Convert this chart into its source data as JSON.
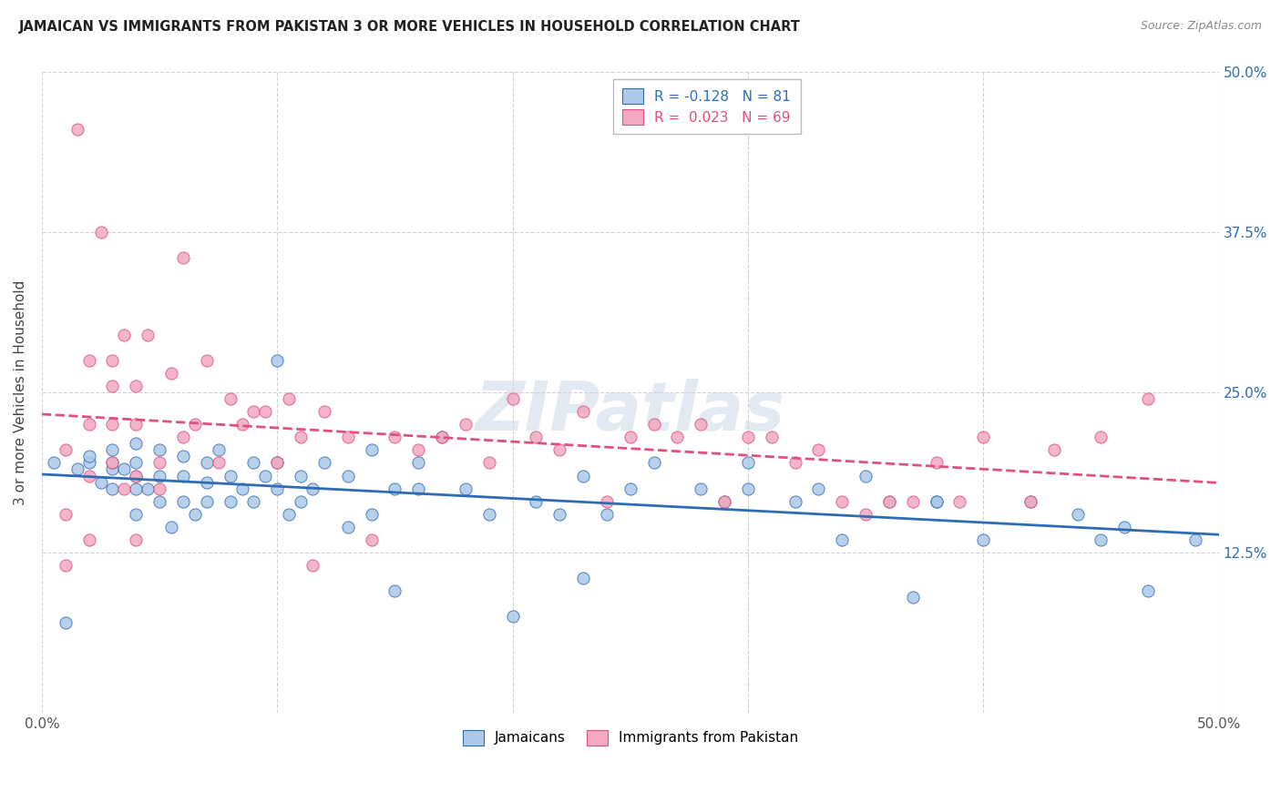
{
  "title": "JAMAICAN VS IMMIGRANTS FROM PAKISTAN 3 OR MORE VEHICLES IN HOUSEHOLD CORRELATION CHART",
  "source": "Source: ZipAtlas.com",
  "ylabel": "3 or more Vehicles in Household",
  "xlim": [
    0.0,
    0.5
  ],
  "ylim": [
    0.0,
    0.5
  ],
  "yticks": [
    0.125,
    0.25,
    0.375,
    0.5
  ],
  "ytick_labels": [
    "12.5%",
    "25.0%",
    "37.5%",
    "50.0%"
  ],
  "xticks": [
    0.0,
    0.1,
    0.2,
    0.3,
    0.4,
    0.5
  ],
  "xtick_labels": [
    "0.0%",
    "",
    "",
    "",
    "",
    "50.0%"
  ],
  "jamaicans_R": -0.128,
  "jamaicans_N": 81,
  "pakistan_R": 0.023,
  "pakistan_N": 69,
  "scatter_color_jamaican": "#adc8e8",
  "scatter_color_pakistan": "#f2a8be",
  "line_color_jamaican": "#2e6db4",
  "line_color_pakistan": "#e05080",
  "legend_label_jamaican": "Jamaicans",
  "legend_label_pakistan": "Immigrants from Pakistan",
  "watermark": "ZIPatlas",
  "jamaicans_x": [
    0.005,
    0.01,
    0.015,
    0.02,
    0.02,
    0.025,
    0.03,
    0.03,
    0.03,
    0.03,
    0.035,
    0.04,
    0.04,
    0.04,
    0.04,
    0.04,
    0.045,
    0.05,
    0.05,
    0.05,
    0.055,
    0.06,
    0.06,
    0.06,
    0.065,
    0.07,
    0.07,
    0.07,
    0.075,
    0.08,
    0.08,
    0.085,
    0.09,
    0.09,
    0.095,
    0.1,
    0.1,
    0.1,
    0.105,
    0.11,
    0.11,
    0.115,
    0.12,
    0.13,
    0.13,
    0.14,
    0.14,
    0.15,
    0.15,
    0.16,
    0.16,
    0.17,
    0.18,
    0.19,
    0.2,
    0.21,
    0.22,
    0.23,
    0.23,
    0.24,
    0.25,
    0.26,
    0.28,
    0.29,
    0.3,
    0.3,
    0.32,
    0.33,
    0.34,
    0.35,
    0.36,
    0.37,
    0.38,
    0.38,
    0.4,
    0.42,
    0.44,
    0.45,
    0.46,
    0.47,
    0.49
  ],
  "jamaicans_y": [
    0.195,
    0.07,
    0.19,
    0.195,
    0.2,
    0.18,
    0.175,
    0.19,
    0.195,
    0.205,
    0.19,
    0.155,
    0.175,
    0.185,
    0.195,
    0.21,
    0.175,
    0.165,
    0.185,
    0.205,
    0.145,
    0.165,
    0.185,
    0.2,
    0.155,
    0.165,
    0.18,
    0.195,
    0.205,
    0.165,
    0.185,
    0.175,
    0.165,
    0.195,
    0.185,
    0.175,
    0.195,
    0.275,
    0.155,
    0.165,
    0.185,
    0.175,
    0.195,
    0.145,
    0.185,
    0.155,
    0.205,
    0.095,
    0.175,
    0.175,
    0.195,
    0.215,
    0.175,
    0.155,
    0.075,
    0.165,
    0.155,
    0.105,
    0.185,
    0.155,
    0.175,
    0.195,
    0.175,
    0.165,
    0.175,
    0.195,
    0.165,
    0.175,
    0.135,
    0.185,
    0.165,
    0.09,
    0.165,
    0.165,
    0.135,
    0.165,
    0.155,
    0.135,
    0.145,
    0.095,
    0.135
  ],
  "pakistan_x": [
    0.01,
    0.01,
    0.01,
    0.015,
    0.02,
    0.02,
    0.02,
    0.02,
    0.025,
    0.03,
    0.03,
    0.03,
    0.03,
    0.035,
    0.035,
    0.04,
    0.04,
    0.04,
    0.04,
    0.045,
    0.05,
    0.05,
    0.055,
    0.06,
    0.06,
    0.065,
    0.07,
    0.075,
    0.08,
    0.085,
    0.09,
    0.095,
    0.1,
    0.105,
    0.11,
    0.115,
    0.12,
    0.13,
    0.14,
    0.15,
    0.16,
    0.17,
    0.18,
    0.19,
    0.2,
    0.21,
    0.22,
    0.23,
    0.24,
    0.25,
    0.26,
    0.27,
    0.28,
    0.29,
    0.3,
    0.31,
    0.32,
    0.33,
    0.34,
    0.35,
    0.36,
    0.37,
    0.38,
    0.39,
    0.4,
    0.42,
    0.43,
    0.45,
    0.47
  ],
  "pakistan_y": [
    0.115,
    0.155,
    0.205,
    0.455,
    0.135,
    0.185,
    0.225,
    0.275,
    0.375,
    0.195,
    0.225,
    0.255,
    0.275,
    0.175,
    0.295,
    0.185,
    0.225,
    0.255,
    0.135,
    0.295,
    0.195,
    0.175,
    0.265,
    0.215,
    0.355,
    0.225,
    0.275,
    0.195,
    0.245,
    0.225,
    0.235,
    0.235,
    0.195,
    0.245,
    0.215,
    0.115,
    0.235,
    0.215,
    0.135,
    0.215,
    0.205,
    0.215,
    0.225,
    0.195,
    0.245,
    0.215,
    0.205,
    0.235,
    0.165,
    0.215,
    0.225,
    0.215,
    0.225,
    0.165,
    0.215,
    0.215,
    0.195,
    0.205,
    0.165,
    0.155,
    0.165,
    0.165,
    0.195,
    0.165,
    0.215,
    0.165,
    0.205,
    0.215,
    0.245
  ]
}
